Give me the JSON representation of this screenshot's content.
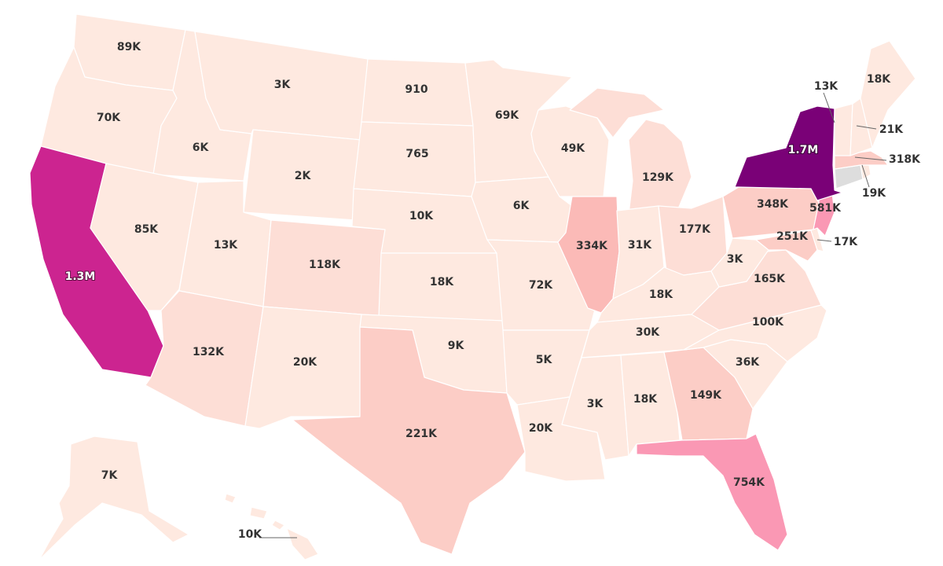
{
  "colors": {
    "c1": "#fee9e0",
    "c2": "#fdded6",
    "c3": "#fccdc6",
    "c4": "#fbbab7",
    "c5": "#fa98b4",
    "c6": "#cc2490",
    "c7": "#7a0177",
    "nodata": "#dddddd"
  },
  "states": {
    "WA": {
      "label": "89K"
    },
    "OR": {
      "label": "70K"
    },
    "CA": {
      "label": "1.3M"
    },
    "ID": {
      "label": "6K"
    },
    "NV": {
      "label": "85K"
    },
    "MT": {
      "label": "3K"
    },
    "WY": {
      "label": "2K"
    },
    "UT": {
      "label": "13K"
    },
    "AZ": {
      "label": "132K"
    },
    "CO": {
      "label": "118K"
    },
    "NM": {
      "label": "20K"
    },
    "ND": {
      "label": "910"
    },
    "SD": {
      "label": "765"
    },
    "NE": {
      "label": "10K"
    },
    "KS": {
      "label": "18K"
    },
    "OK": {
      "label": "9K"
    },
    "TX": {
      "label": "221K"
    },
    "MN": {
      "label": "69K"
    },
    "IA": {
      "label": "6K"
    },
    "MO": {
      "label": "72K"
    },
    "AR": {
      "label": "5K"
    },
    "LA": {
      "label": "20K"
    },
    "WI": {
      "label": "49K"
    },
    "IL": {
      "label": "334K"
    },
    "MI": {
      "label": "129K"
    },
    "IN": {
      "label": "31K"
    },
    "OH": {
      "label": "177K"
    },
    "KY": {
      "label": "18K"
    },
    "TN": {
      "label": "30K"
    },
    "MS": {
      "label": "3K"
    },
    "AL": {
      "label": "18K"
    },
    "GA": {
      "label": "149K"
    },
    "FL": {
      "label": "754K"
    },
    "SC": {
      "label": "36K"
    },
    "NC": {
      "label": "100K"
    },
    "VA": {
      "label": "165K"
    },
    "WV": {
      "label": "3K"
    },
    "PA": {
      "label": "348K"
    },
    "NY": {
      "label": "1.7M"
    },
    "NJ": {
      "label": "581K"
    },
    "DE": {
      "label": "17K"
    },
    "MD": {
      "label": "251K"
    },
    "CT": {
      "label": "19K"
    },
    "MA": {
      "label": "318K"
    },
    "VT": {
      "label": "13K"
    },
    "NH": {
      "label": "21K"
    },
    "ME": {
      "label": "18K"
    },
    "AK": {
      "label": "7K"
    },
    "HI": {
      "label": "10K"
    }
  }
}
